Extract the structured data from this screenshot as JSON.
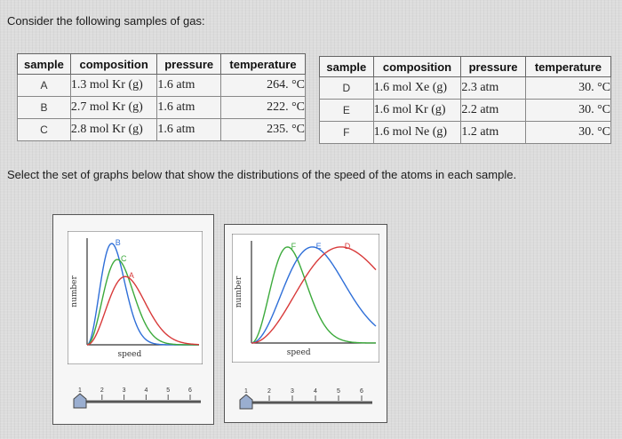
{
  "prompt": "Consider the following samples of gas:",
  "question": "Select the set of graphs below that show the distributions of the speed of the atoms in each sample.",
  "table_left": {
    "headers": [
      "sample",
      "composition",
      "pressure",
      "temperature"
    ],
    "rows": [
      {
        "sample": "A",
        "composition": "1.3 mol Kr (g)",
        "pressure": "1.6 atm",
        "temperature": "264. °C"
      },
      {
        "sample": "B",
        "composition": "2.7 mol Kr (g)",
        "pressure": "1.6 atm",
        "temperature": "222. °C"
      },
      {
        "sample": "C",
        "composition": "2.8 mol Kr (g)",
        "pressure": "1.6 atm",
        "temperature": "235. °C"
      }
    ]
  },
  "table_right": {
    "headers": [
      "sample",
      "composition",
      "pressure",
      "temperature"
    ],
    "rows": [
      {
        "sample": "D",
        "composition": "1.6 mol Xe (g)",
        "pressure": "2.3 atm",
        "temperature": "30. °C"
      },
      {
        "sample": "E",
        "composition": "1.6 mol Kr (g)",
        "pressure": "2.2 atm",
        "temperature": "30. °C"
      },
      {
        "sample": "F",
        "composition": "1.6 mol Ne (g)",
        "pressure": "1.2 atm",
        "temperature": "30. °C"
      }
    ]
  },
  "graphs": [
    {
      "ylabel": "number",
      "xlabel": "speed",
      "curves": [
        {
          "label": "B",
          "color": "#2f6fd8",
          "peak": 0.22,
          "height": 0.95
        },
        {
          "label": "C",
          "color": "#3caa3c",
          "peak": 0.27,
          "height": 0.8
        },
        {
          "label": "A",
          "color": "#d83a3a",
          "peak": 0.34,
          "height": 0.64
        }
      ],
      "slider": {
        "ticks": [
          "1",
          "2",
          "3",
          "4",
          "5",
          "6"
        ],
        "value": 1
      }
    },
    {
      "ylabel": "number",
      "xlabel": "speed",
      "curves": [
        {
          "label": "F",
          "color": "#3caa3c",
          "peak": 0.29,
          "height": 0.94
        },
        {
          "label": "E",
          "color": "#2f6fd8",
          "peak": 0.49,
          "height": 0.94
        },
        {
          "label": "D",
          "color": "#d83a3a",
          "peak": 0.72,
          "height": 0.94
        }
      ],
      "slider": {
        "ticks": [
          "1",
          "2",
          "3",
          "4",
          "5",
          "6"
        ],
        "value": 1
      }
    }
  ]
}
